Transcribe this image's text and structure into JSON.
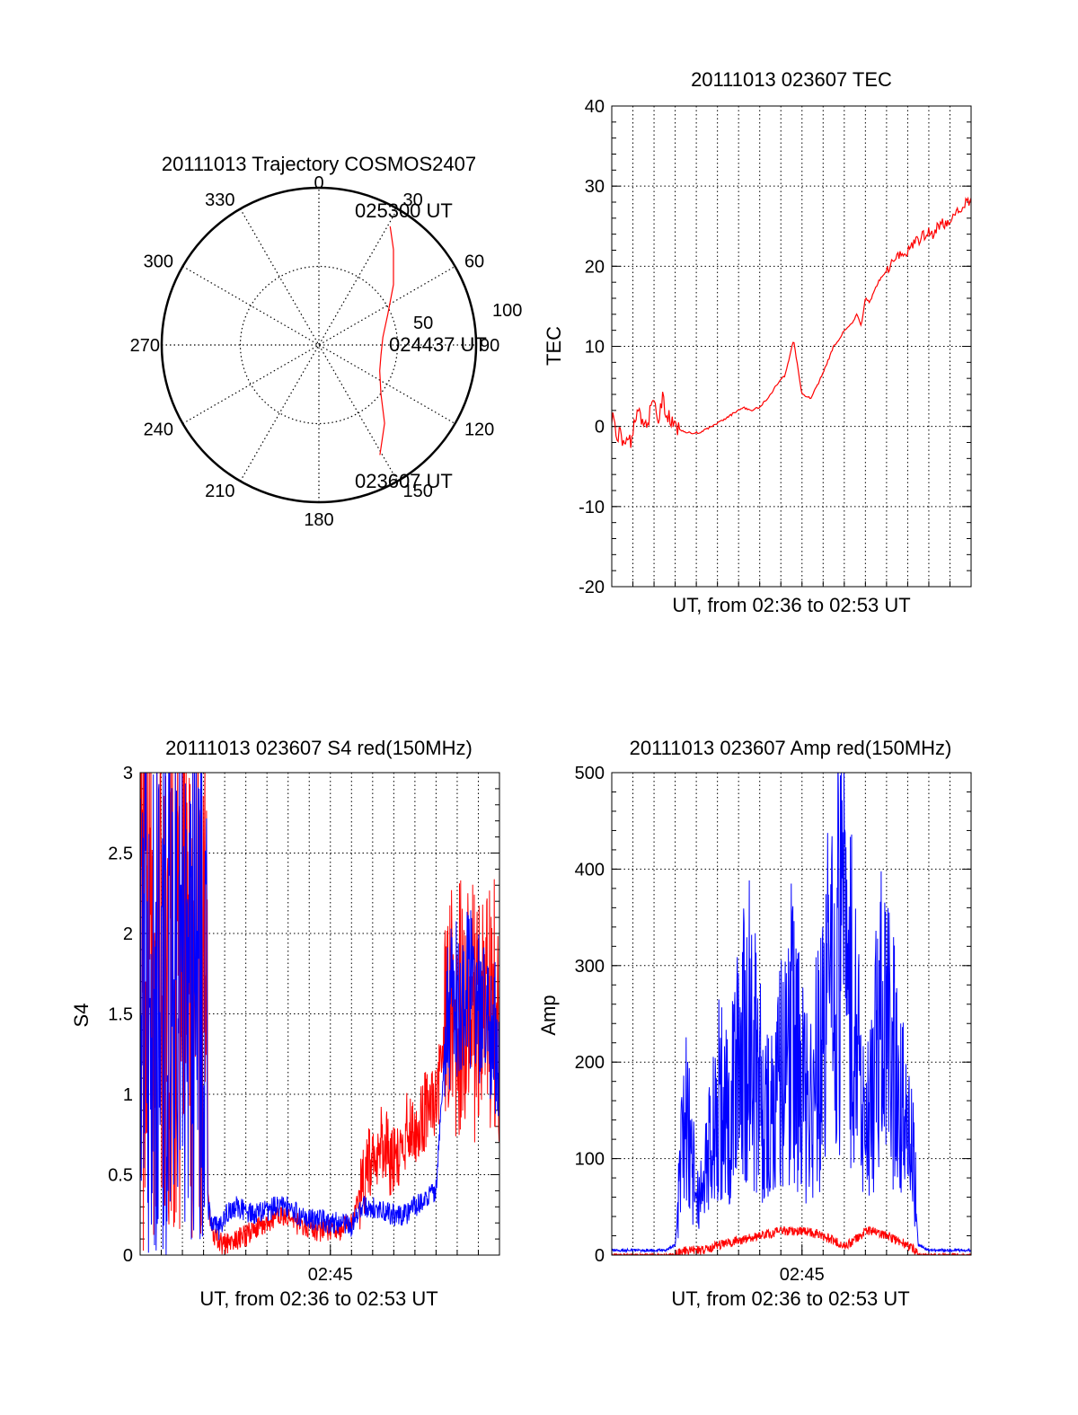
{
  "colors": {
    "red": "#ff0000",
    "blue": "#0000ff",
    "axis": "#000000",
    "grid": "#000000"
  },
  "chart_data": [
    {
      "id": "trajectory",
      "type": "polar",
      "title": "20111013 Trajectory COSMOS2407",
      "angle_labels": [
        "0",
        "30",
        "60",
        "90",
        "120",
        "150",
        "180",
        "210",
        "240",
        "270",
        "300",
        "330"
      ],
      "radius_labels": [
        "50",
        "100"
      ],
      "rlim": [
        0,
        100
      ],
      "grid": true,
      "annotations": [
        "025300 UT",
        "024437 UT",
        "023607 UT"
      ],
      "series": [
        {
          "color": "red",
          "points": [
            {
              "az": 151,
              "r": 80
            },
            {
              "az": 140,
              "r": 65
            },
            {
              "az": 128,
              "r": 50
            },
            {
              "az": 113,
              "r": 42
            },
            {
              "az": 99,
              "r": 40
            },
            {
              "az": 83,
              "r": 41
            },
            {
              "az": 66,
              "r": 48
            },
            {
              "az": 51,
              "r": 61
            },
            {
              "az": 38,
              "r": 77
            },
            {
              "az": 31,
              "r": 88
            }
          ]
        }
      ]
    },
    {
      "id": "tec",
      "type": "line",
      "title": "20111013 023607 TEC",
      "xlabel": "UT, from 02:36 to 02:53 UT",
      "ylabel": "TEC",
      "xlim": [
        0,
        17
      ],
      "ylim": [
        -20,
        40
      ],
      "yticks": [
        "-20",
        "-10",
        "0",
        "10",
        "20",
        "30",
        "40"
      ],
      "xtick_labels": [],
      "grid": true,
      "series": [
        {
          "color": "red",
          "x": [
            0.0,
            0.2,
            0.5,
            0.8,
            1.0,
            1.2,
            1.5,
            1.8,
            2.0,
            2.2,
            2.4,
            2.6,
            2.8,
            3.0,
            3.4,
            3.8,
            4.2,
            4.6,
            5.0,
            5.4,
            5.8,
            6.2,
            6.6,
            7.0,
            7.4,
            7.8,
            8.2,
            8.6,
            9.0,
            9.4,
            9.8,
            10.2,
            10.5,
            10.8,
            11.0,
            11.2,
            11.4,
            11.6,
            11.8,
            12.0,
            12.2,
            12.6,
            13.0,
            13.4,
            13.8,
            14.2,
            14.6,
            14.8,
            15.0,
            15.2,
            15.4,
            15.6,
            15.8,
            16.0,
            16.2,
            16.4,
            16.6,
            16.8,
            17.0
          ],
          "y": [
            1.5,
            -0.5,
            -1.5,
            -2.5,
            -1.0,
            2.5,
            0.0,
            1.5,
            3.0,
            0.5,
            3.5,
            1.5,
            0.5,
            0.0,
            -0.6,
            -0.9,
            -0.7,
            -0.2,
            0.4,
            1.0,
            1.7,
            2.4,
            2.0,
            2.4,
            3.6,
            5.2,
            6.4,
            10.8,
            4.0,
            3.5,
            5.5,
            8.0,
            10.0,
            11.0,
            12.0,
            12.5,
            13.0,
            14.0,
            12.5,
            16.0,
            15.5,
            18.0,
            19.5,
            21.0,
            21.5,
            22.5,
            23.5,
            24.0,
            24.5,
            24.0,
            25.0,
            25.5,
            25.0,
            26.0,
            26.5,
            27.0,
            27.5,
            28.0,
            28.5
          ]
        }
      ]
    },
    {
      "id": "s4",
      "type": "line",
      "title": "20111013 023607 S4 red(150MHz)",
      "xlabel": "UT, from 02:36 to 02:53 UT",
      "ylabel": "S4",
      "xlim": [
        0,
        17
      ],
      "ylim": [
        0,
        3
      ],
      "yticks": [
        "0",
        "0.5",
        "1",
        "1.5",
        "2",
        "2.5",
        "3"
      ],
      "xtick_labels": [
        {
          "x": 9,
          "label": "02:45"
        }
      ],
      "grid": true,
      "series": [
        {
          "color": "red",
          "x": [
            0.0,
            3.2,
            3.4,
            3.7,
            4.0,
            4.5,
            5.0,
            5.5,
            6.0,
            6.5,
            7.0,
            7.5,
            8.0,
            8.5,
            9.0,
            9.5,
            10.0,
            10.5,
            11.0,
            11.5,
            12.0,
            12.5,
            13.0,
            13.5,
            14.0,
            14.5,
            15.0,
            15.5,
            16.0,
            16.5,
            17.0
          ],
          "y": [
            0.0,
            0.35,
            0.15,
            0.08,
            0.07,
            0.09,
            0.12,
            0.17,
            0.2,
            0.25,
            0.23,
            0.19,
            0.17,
            0.15,
            0.15,
            0.16,
            0.2,
            0.45,
            0.65,
            0.7,
            0.55,
            0.75,
            0.8,
            0.9,
            0.9,
            1.5,
            1.5,
            1.6,
            1.4,
            1.6,
            1.5
          ]
        },
        {
          "color": "blue",
          "x": [
            0.0,
            3.2,
            3.4,
            3.7,
            4.0,
            4.5,
            5.0,
            5.5,
            6.0,
            6.5,
            7.0,
            7.5,
            8.0,
            8.5,
            9.0,
            9.5,
            10.0,
            10.5,
            11.0,
            11.5,
            12.0,
            12.5,
            13.0,
            13.5,
            14.0,
            14.5,
            15.0,
            15.5,
            16.0,
            16.5,
            17.0
          ],
          "y": [
            0.0,
            0.3,
            0.22,
            0.15,
            0.25,
            0.3,
            0.27,
            0.25,
            0.28,
            0.3,
            0.3,
            0.25,
            0.22,
            0.22,
            0.2,
            0.2,
            0.18,
            0.3,
            0.3,
            0.27,
            0.25,
            0.25,
            0.3,
            0.35,
            0.4,
            1.5,
            1.6,
            1.7,
            1.5,
            1.4,
            1.3
          ]
        }
      ]
    },
    {
      "id": "amp",
      "type": "line",
      "title": "20111013 023607 Amp red(150MHz)",
      "xlabel": "UT, from 02:36 to 02:53 UT",
      "ylabel": "Amp",
      "xlim": [
        0,
        17
      ],
      "ylim": [
        0,
        500
      ],
      "yticks": [
        "0",
        "100",
        "200",
        "300",
        "400",
        "500"
      ],
      "xtick_labels": [
        {
          "x": 9,
          "label": "02:45"
        }
      ],
      "grid": true,
      "series": [
        {
          "color": "red",
          "x": [
            0.0,
            3.0,
            3.5,
            4.0,
            4.5,
            5.0,
            6.0,
            7.0,
            8.0,
            9.0,
            10.0,
            10.5,
            11.0,
            11.5,
            12.0,
            12.5,
            13.0,
            13.5,
            14.0,
            14.3,
            14.5,
            15.0,
            16.0,
            17.0
          ],
          "y": [
            0,
            0,
            5,
            5,
            5,
            10,
            15,
            20,
            25,
            25,
            20,
            15,
            10,
            15,
            25,
            25,
            20,
            15,
            10,
            5,
            0,
            0,
            0,
            0
          ]
        },
        {
          "color": "blue",
          "x": [
            0.0,
            2.5,
            3.0,
            3.2,
            3.5,
            3.8,
            4.0,
            4.5,
            5.0,
            5.5,
            6.0,
            6.5,
            7.0,
            7.5,
            8.0,
            8.5,
            9.0,
            9.5,
            10.0,
            10.5,
            11.0,
            11.5,
            12.0,
            12.5,
            13.0,
            13.5,
            14.0,
            14.3,
            14.5,
            15.0,
            16.0,
            17.0
          ],
          "y": [
            5,
            5,
            10,
            60,
            130,
            90,
            40,
            80,
            140,
            130,
            170,
            200,
            150,
            110,
            160,
            200,
            150,
            140,
            200,
            260,
            270,
            220,
            90,
            190,
            230,
            150,
            110,
            80,
            10,
            5,
            5,
            5
          ]
        }
      ]
    }
  ]
}
